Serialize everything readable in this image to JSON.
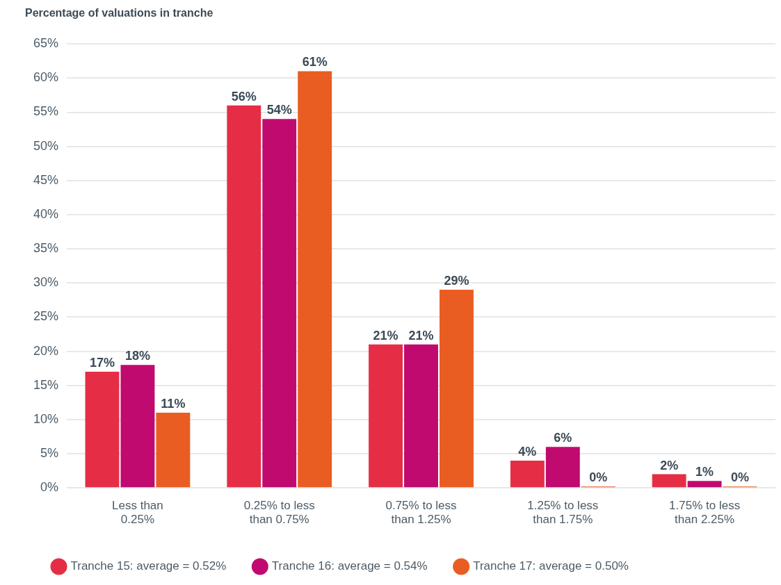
{
  "chart_data": {
    "type": "bar",
    "ylabel": "Percentage of valuations in tranche",
    "categories": [
      "Less than\n0.25%",
      "0.25% to less\nthan 0.75%",
      "0.75% to less\nthan 1.25%",
      "1.25% to less\nthan 1.75%",
      "1.75% to less\nthan 2.25%"
    ],
    "series": [
      {
        "name": "Tranche 15: average = 0.52%",
        "color": "#e52e45",
        "values": [
          17,
          56,
          21,
          4,
          2
        ],
        "value_labels": [
          "17%",
          "56%",
          "21%",
          "4%",
          "2%"
        ]
      },
      {
        "name": "Tranche 16: average = 0.54%",
        "color": "#c00a70",
        "values": [
          18,
          54,
          21,
          6,
          1
        ],
        "value_labels": [
          "18%",
          "54%",
          "21%",
          "6%",
          "1%"
        ]
      },
      {
        "name": "Tranche 17: average = 0.50%",
        "color": "#e95d22",
        "values": [
          11,
          61,
          29,
          0,
          0
        ],
        "value_labels": [
          "11%",
          "61%",
          "29%",
          "0%",
          "0%"
        ]
      }
    ],
    "ylim": [
      0,
      65
    ],
    "yticks": [
      {
        "value": 0,
        "label": "0%"
      },
      {
        "value": 5,
        "label": "5%"
      },
      {
        "value": 10,
        "label": "10%"
      },
      {
        "value": 15,
        "label": "15%"
      },
      {
        "value": 20,
        "label": "20%"
      },
      {
        "value": 25,
        "label": "25%"
      },
      {
        "value": 30,
        "label": "30%"
      },
      {
        "value": 35,
        "label": "35%"
      },
      {
        "value": 40,
        "label": "40%"
      },
      {
        "value": 45,
        "label": "45%"
      },
      {
        "value": 50,
        "label": "50%"
      },
      {
        "value": 55,
        "label": "55%"
      },
      {
        "value": 60,
        "label": "60%"
      },
      {
        "value": 65,
        "label": "65%"
      }
    ],
    "grid": "y",
    "legend": "bottom left"
  }
}
